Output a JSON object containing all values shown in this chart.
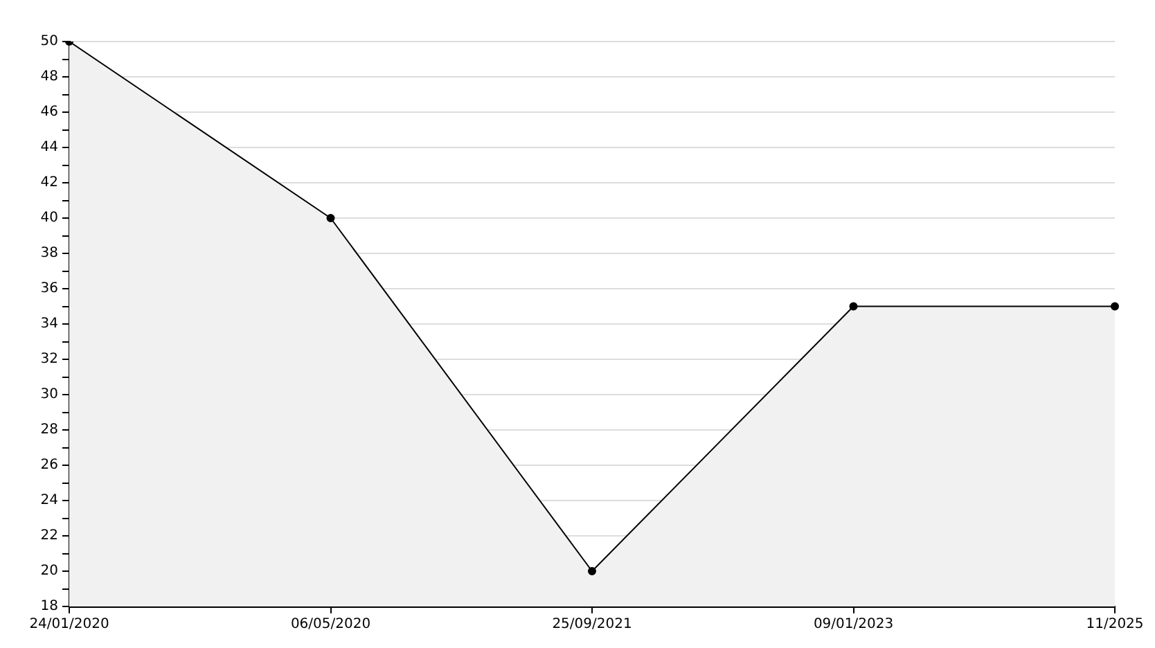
{
  "chart_data": {
    "type": "area",
    "categories": [
      "24/01/2020",
      "06/05/2020",
      "25/09/2021",
      "09/01/2023",
      "11/2025"
    ],
    "series": [
      {
        "color": "#000000",
        "values": [
          50,
          40,
          20,
          35,
          35
        ]
      }
    ],
    "ylim": [
      18,
      50
    ],
    "yticks": [
      18,
      {
        "value": 19,
        "label": null
      },
      20,
      {
        "value": 21,
        "label": null
      },
      22,
      {
        "value": 23,
        "label": null
      },
      24,
      {
        "value": 25,
        "label": null
      },
      26,
      {
        "value": 27,
        "label": null
      },
      28,
      {
        "value": 29,
        "label": null
      },
      30,
      {
        "value": 31,
        "label": null
      },
      32,
      {
        "value": 33,
        "label": null
      },
      34,
      {
        "value": 35,
        "label": null
      },
      36,
      {
        "value": 37,
        "label": null
      },
      38,
      {
        "value": 39,
        "label": null
      },
      40,
      {
        "value": 41,
        "label": null
      },
      42,
      {
        "value": 43,
        "label": null
      },
      44,
      {
        "value": 45,
        "label": null
      },
      46,
      {
        "value": 47,
        "label": null
      },
      48,
      {
        "value": 49,
        "label": null
      },
      50
    ],
    "grid": "y",
    "marker": "circle",
    "legend": false
  }
}
